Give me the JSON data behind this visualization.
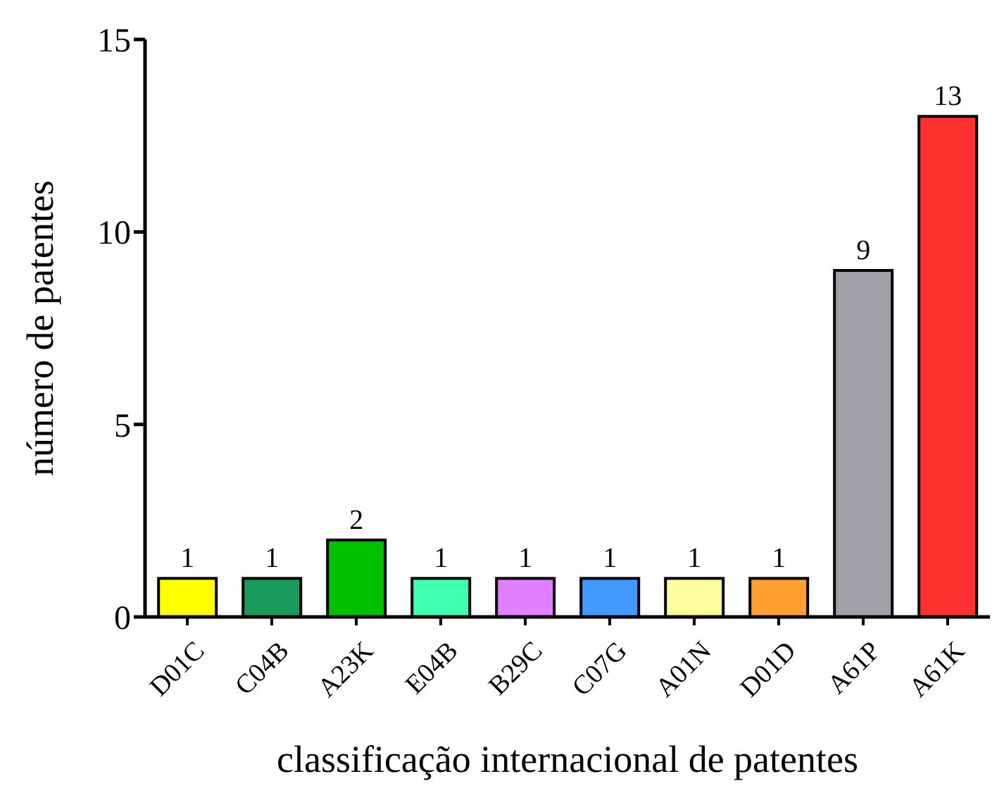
{
  "chart_data": {
    "type": "bar",
    "xlabel": "classificação internacional de patentes",
    "ylabel": "número de patentes",
    "categories": [
      "D01C",
      "C04B",
      "A23K",
      "E04B",
      "B29C",
      "C07G",
      "A01N",
      "D01D",
      "A61P",
      "A61K"
    ],
    "values": [
      1,
      1,
      2,
      1,
      1,
      1,
      1,
      1,
      9,
      13
    ],
    "colors": [
      "#ffff00",
      "#1a9a5a",
      "#00c000",
      "#40ffb0",
      "#e080ff",
      "#4499ff",
      "#ffffa0",
      "#ffa030",
      "#a0a0a8",
      "#ff3030"
    ],
    "ylim": [
      0,
      15
    ],
    "yticks": [
      0,
      5,
      10,
      15
    ],
    "data_labels": true,
    "grid": false
  }
}
